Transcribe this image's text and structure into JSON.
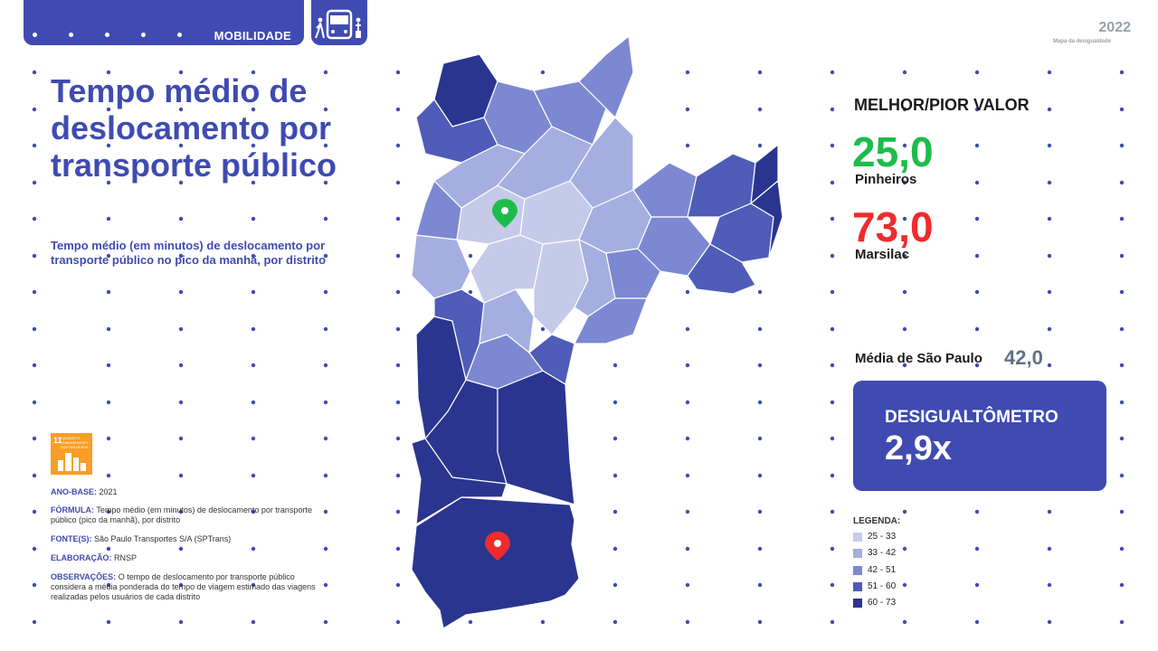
{
  "header": {
    "section_label": "MOBILIDADE",
    "bus_icon": "bus-pedestrian-icon",
    "logo_year": "2022",
    "logo_caption": "Mapa da desigualdade"
  },
  "title": "Tempo médio de deslocamento por transporte público",
  "subtitle": "Tempo médio (em minutos) de deslocamento por transporte público no pico da manhã, por distrito",
  "sdg": {
    "number": "11",
    "text": "CIDADES E COMUNIDADES SUSTENTÁVEIS",
    "color": "#f99d26"
  },
  "meta": [
    {
      "key": "ANO-BASE:",
      "value": " 2021"
    },
    {
      "key": "FÓRMULA:",
      "value": " Tempo médio (em minutos) de deslocamento por transporte público (pico da manhã), por distrito"
    },
    {
      "key": "FONTE(S):",
      "value": " São Paulo Transportes S/A (SPTrans)"
    },
    {
      "key": "ELABORAÇÃO:",
      "value": " RNSP"
    },
    {
      "key": "OBSERVAÇÕES:",
      "value": " O tempo de deslocamento por transporte público considera a média ponderada do tempo de viagem estimado das viagens realizadas pelos usuários de cada distrito"
    }
  ],
  "stats": {
    "heading": "MELHOR/PIOR VALOR",
    "best_value": "25,0",
    "best_name": "Pinheiros",
    "worst_value": "73,0",
    "worst_name": "Marsilac",
    "average_label": "Média de São Paulo",
    "average_value": "42,0",
    "best_color": "#1bbd4a",
    "worst_color": "#ef2b2d"
  },
  "desigualtometro": {
    "label": "DESIGUALTÔMETRO",
    "value": "2,9x"
  },
  "legend": {
    "title": "LEGENDA:",
    "items": [
      {
        "label": "25 - 33",
        "color": "#c5cae9"
      },
      {
        "label": "33 - 42",
        "color": "#a5aee0"
      },
      {
        "label": "42 - 51",
        "color": "#7c88d2"
      },
      {
        "label": "51 - 60",
        "color": "#4f5cb8"
      },
      {
        "label": "60 - 73",
        "color": "#2a3590"
      }
    ]
  },
  "map": {
    "best_marker": "map-pin-icon",
    "worst_marker": "map-pin-icon",
    "best_marker_color": "#1bbd4a",
    "worst_marker_color": "#ef2b2d"
  }
}
